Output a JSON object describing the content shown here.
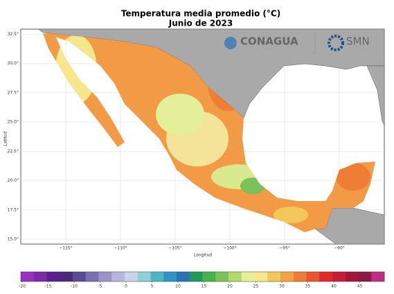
{
  "title": "Temperatura media promedio (°C)",
  "subtitle": "Junio de 2023",
  "x_label": "Longitud",
  "y_label": "Latitud",
  "logos": {
    "left": "CONAGUA",
    "right": "SMN"
  },
  "xticks": [
    {
      "value": -115,
      "label": "−115°"
    },
    {
      "value": -110,
      "label": "−110°"
    },
    {
      "value": -105,
      "label": "−105°"
    },
    {
      "value": -100,
      "label": "−100°"
    },
    {
      "value": -95,
      "label": "−95°"
    },
    {
      "value": -90,
      "label": "−90°"
    }
  ],
  "yticks": [
    {
      "value": 15,
      "label": "15.0°"
    },
    {
      "value": 17.5,
      "label": "17.5°"
    },
    {
      "value": 20,
      "label": "20.0°"
    },
    {
      "value": 22.5,
      "label": "22.5°"
    },
    {
      "value": 25,
      "label": "25.0°"
    },
    {
      "value": 27.5,
      "label": "27.5°"
    },
    {
      "value": 30,
      "label": "30.0°"
    },
    {
      "value": 32.5,
      "label": "32.5°"
    }
  ],
  "colorbar": {
    "ticks": [
      -20,
      -15,
      -10,
      -5,
      0,
      5,
      10,
      15,
      20,
      25,
      30,
      35,
      40,
      45
    ],
    "colors": [
      "#9a2fc0",
      "#7c2aa8",
      "#5b1f8c",
      "#4b2a7a",
      "#5a4a96",
      "#7a6fb3",
      "#9a94c8",
      "#b7b6dc",
      "#c9d4ea",
      "#8fd0d6",
      "#4fb5c4",
      "#2c95c0",
      "#2a73b6",
      "#1f9a5a",
      "#48b24c",
      "#7cc25a",
      "#b3d96c",
      "#e4ef9a",
      "#f6e68c",
      "#f4c75a",
      "#f2a346",
      "#ef7d35",
      "#e9552c",
      "#e02a2a",
      "#c81e36",
      "#a3163a",
      "#8a1a46",
      "#c22e86"
    ]
  }
}
